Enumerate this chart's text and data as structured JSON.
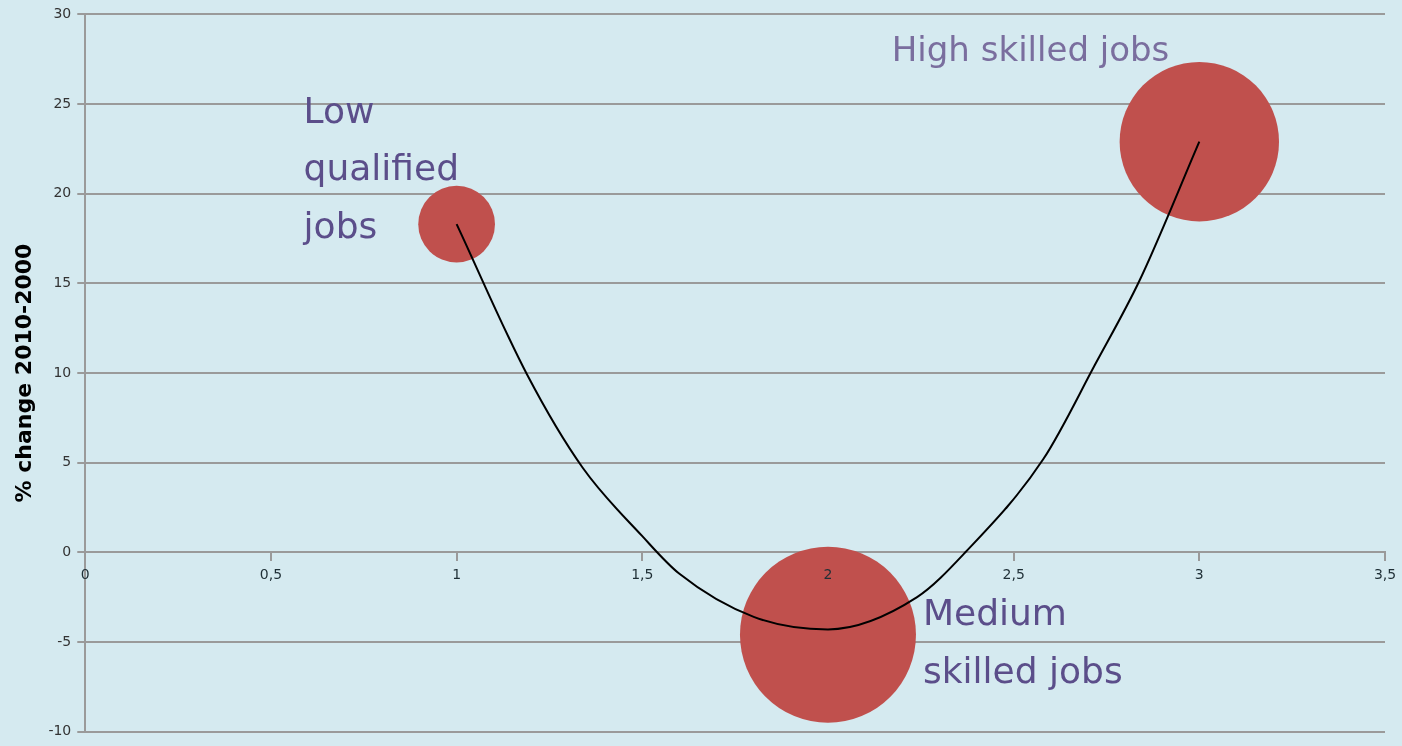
{
  "chart_data": {
    "type": "bubble",
    "ylabel": "% change 2010-2000",
    "xlim": [
      0,
      3.5
    ],
    "xticks": [
      0,
      {
        "value": 0.5,
        "label": "0,5"
      },
      1,
      {
        "value": 1.5,
        "label": "1,5"
      },
      2,
      {
        "value": 2.5,
        "label": "2,5"
      },
      3,
      {
        "value": 3.5,
        "label": "3,5"
      }
    ],
    "ylim": [
      -10,
      30
    ],
    "yticks": [
      -10,
      -5,
      0,
      5,
      10,
      15,
      20,
      25,
      30
    ],
    "grid": "y",
    "series": [
      {
        "type": "bubble",
        "color": "#c0504d",
        "x": [
          1,
          2,
          3
        ],
        "values": [
          18.3,
          -4.6,
          22.9
        ],
        "sizes": [
          0.19,
          1,
          0.82
        ]
      },
      {
        "type": "line",
        "color": "#000000",
        "x": [
          1,
          1.19,
          1.34,
          1.5,
          1.6,
          1.8,
          2,
          2.24,
          2.37,
          2.58,
          2.72,
          2.84,
          3
        ],
        "values": [
          18.3,
          9.9,
          4.7,
          0.9,
          -1.2,
          -3.6,
          -4.3,
          -2.5,
          0,
          5.2,
          10.5,
          15.2,
          22.9
        ]
      }
    ],
    "annotations": [
      {
        "text": "Low qualified jobs",
        "x": 1,
        "y": 18.3
      },
      {
        "text": "Medium skilled jobs",
        "x": 2,
        "y": -4.6
      },
      {
        "text": "High skilled jobs",
        "x": 3,
        "y": 22.9
      }
    ]
  }
}
